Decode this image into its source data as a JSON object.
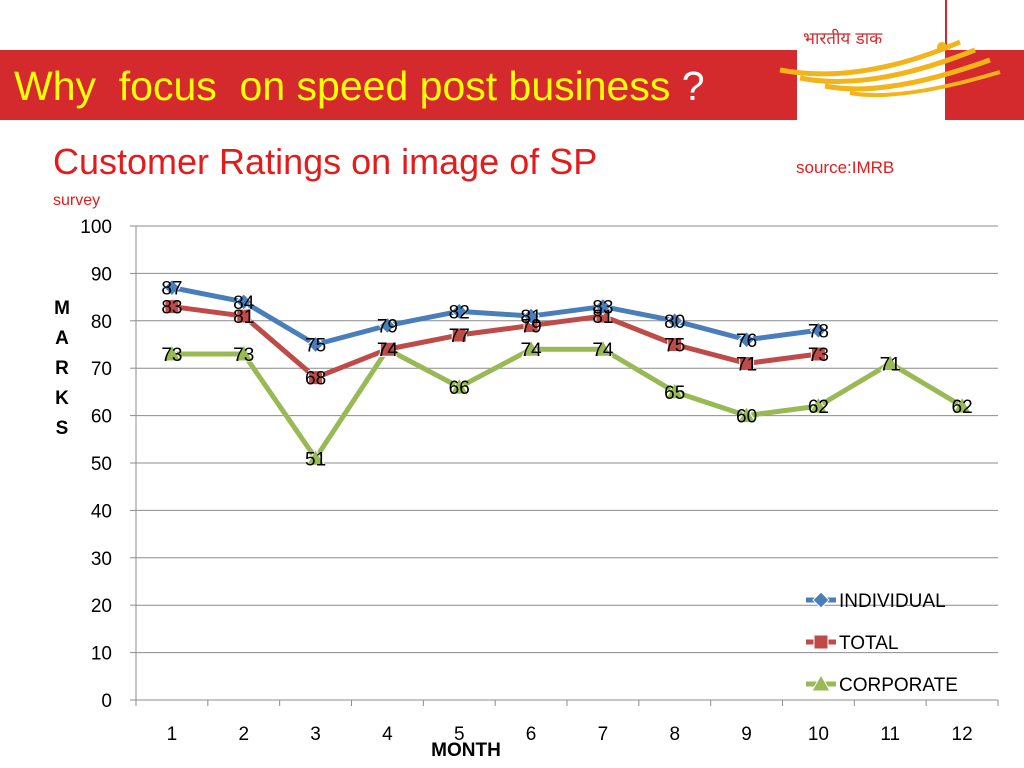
{
  "slide": {
    "title": "Why  focus  on speed post business ",
    "title_question": "?",
    "logo_text": "भारतीय डाक",
    "colors": {
      "band": "#d42a2e",
      "title": "#ffff00",
      "subtitle": "#e51b1b"
    }
  },
  "chart_heading": {
    "title": "Customer Ratings on image of SP",
    "source": "source:IMRB",
    "source_cont": "survey"
  },
  "chart_data": {
    "type": "line",
    "x": [
      1,
      2,
      3,
      4,
      5,
      6,
      7,
      8,
      9,
      10,
      11,
      12
    ],
    "xlabel": "MONTH",
    "ylabel": "MARKS",
    "ylim": [
      0,
      100
    ],
    "yticks": [
      0,
      10,
      20,
      30,
      40,
      50,
      60,
      70,
      80,
      90,
      100
    ],
    "grid": true,
    "legend_position": "bottom-right",
    "series": [
      {
        "name": "INDIVIDUAL",
        "color": "#4a7ebb",
        "marker": "diamond",
        "values": [
          87,
          84,
          75,
          79,
          82,
          81,
          83,
          80,
          76,
          78,
          null,
          null
        ]
      },
      {
        "name": "TOTAL",
        "color": "#be4b48",
        "marker": "square",
        "values": [
          83,
          81,
          68,
          74,
          77,
          79,
          81,
          75,
          71,
          73,
          null,
          null
        ]
      },
      {
        "name": "CORPORATE",
        "color": "#98b954",
        "marker": "triangle",
        "values": [
          73,
          73,
          51,
          74,
          66,
          74,
          74,
          65,
          60,
          62,
          71,
          62
        ]
      }
    ]
  }
}
